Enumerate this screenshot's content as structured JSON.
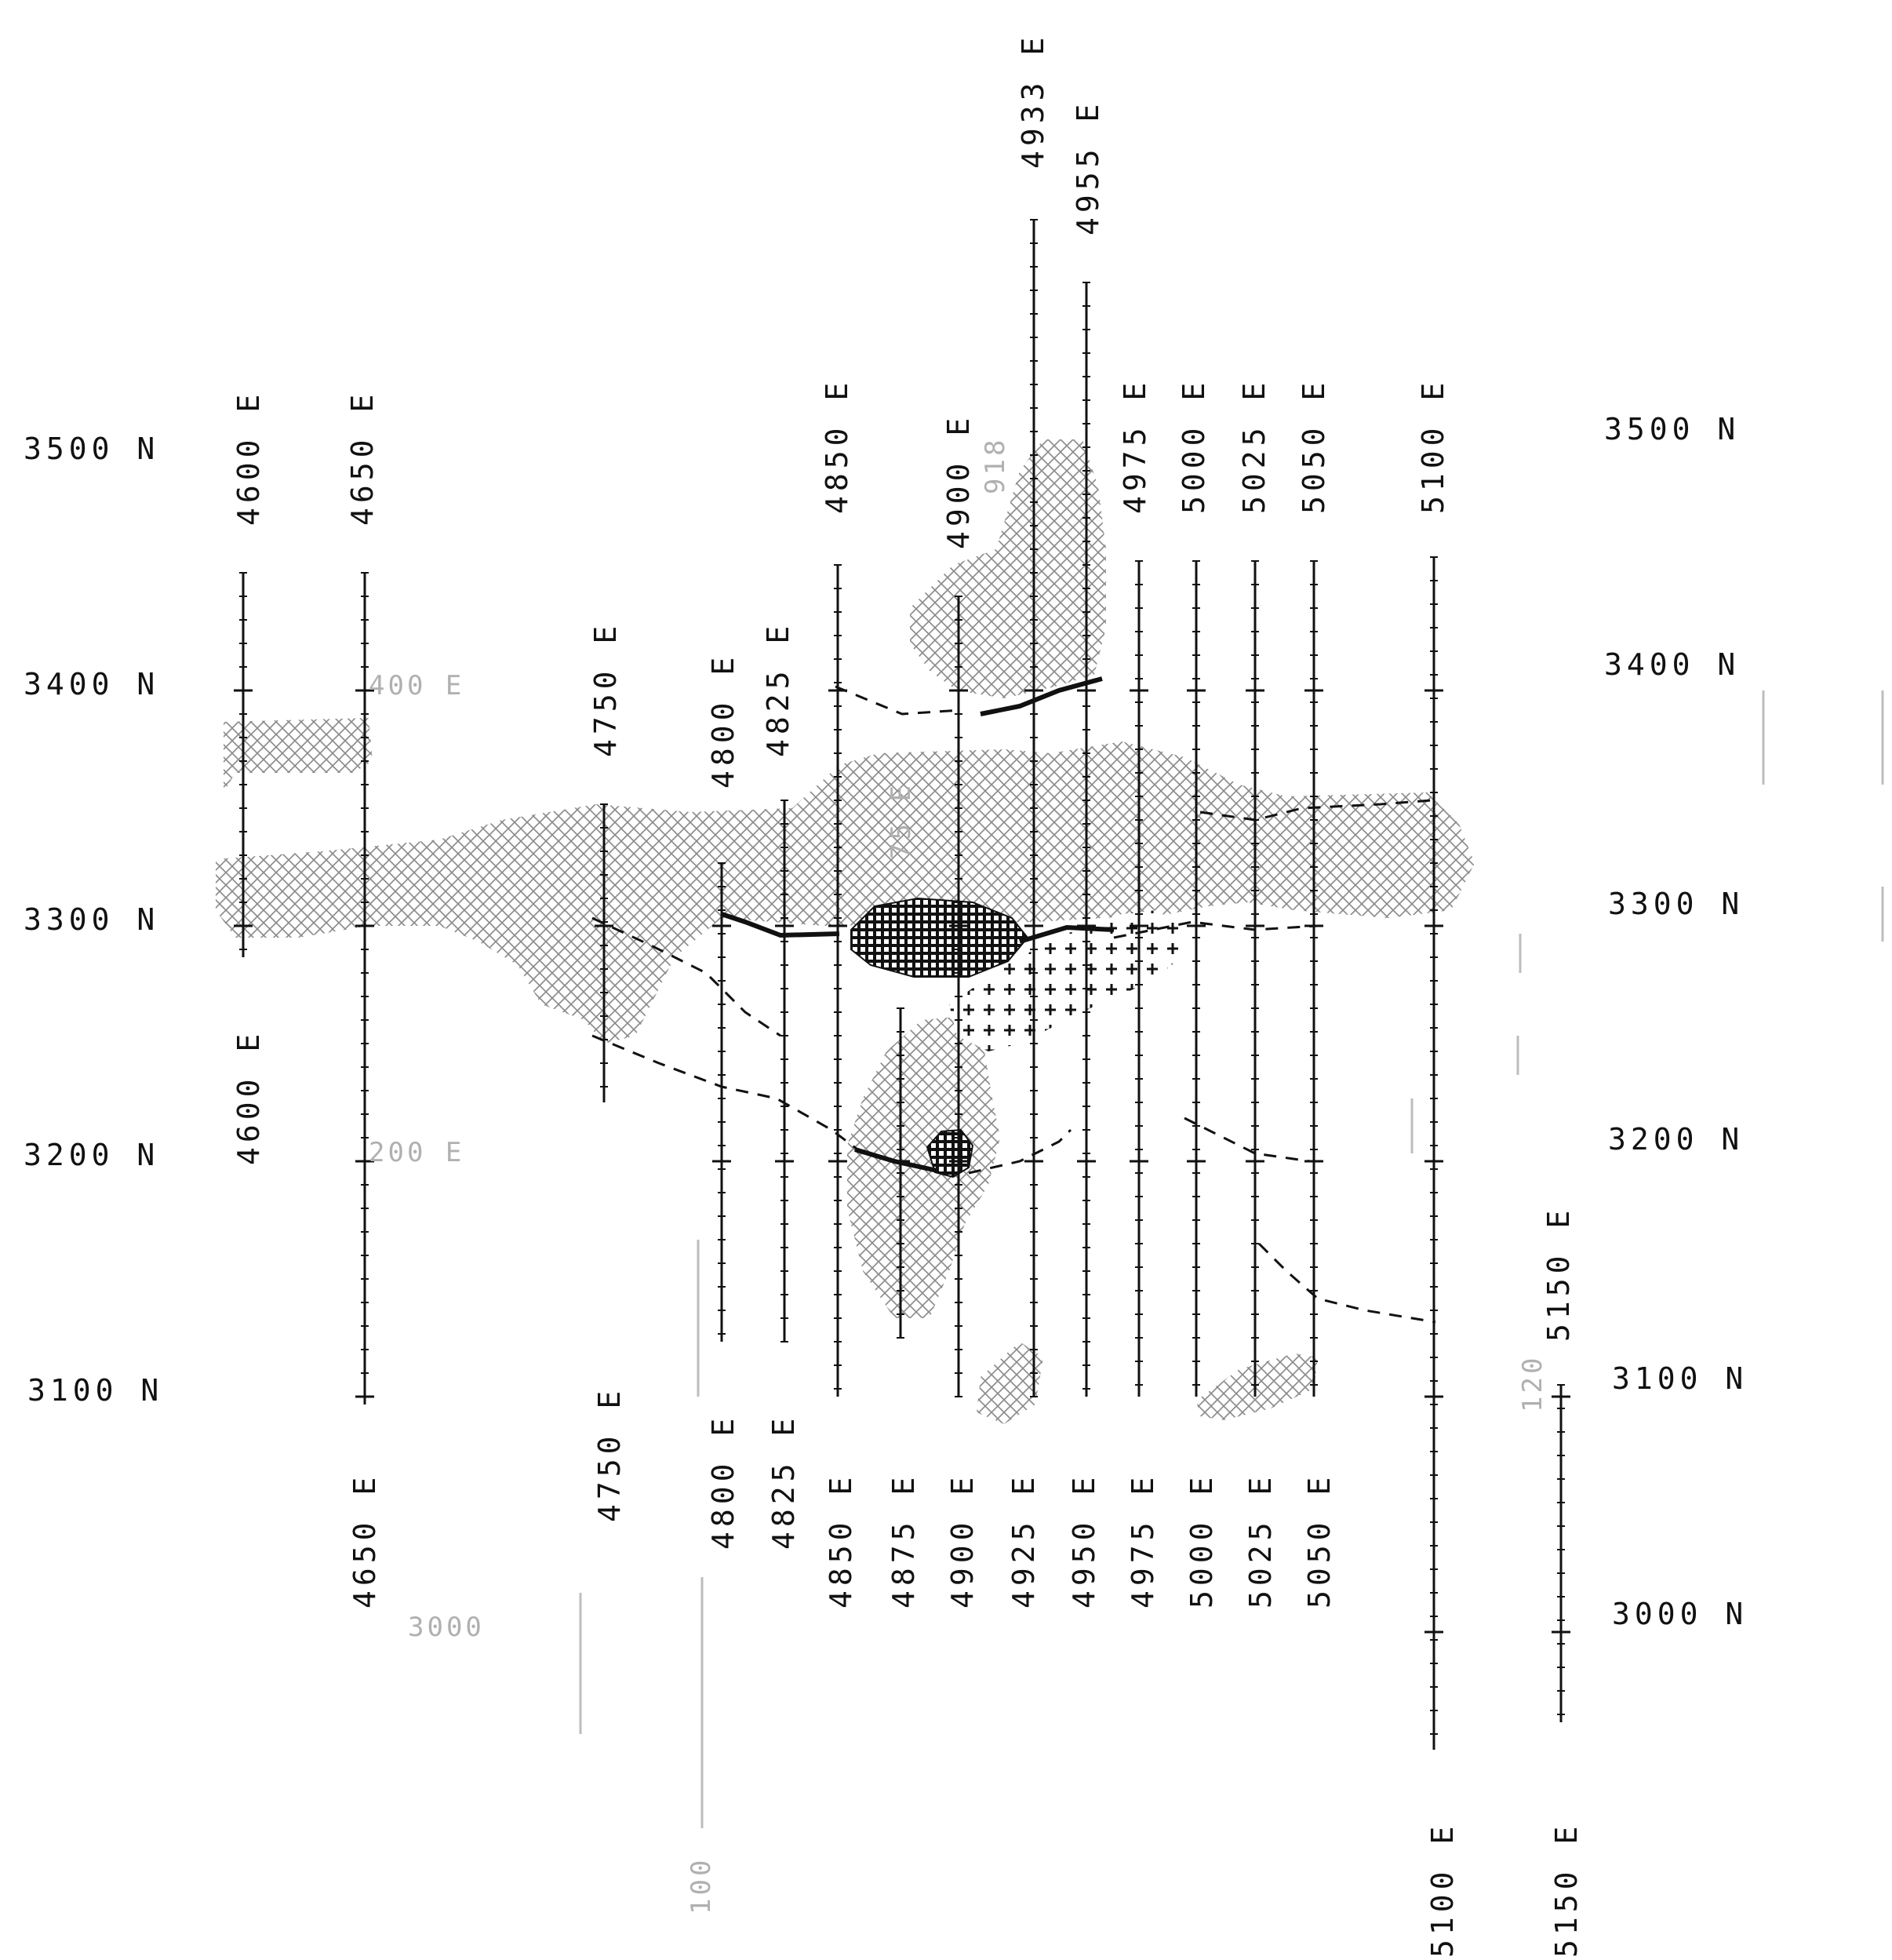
{
  "north_labels_left": [
    {
      "id": "n3500",
      "text": "3500 N"
    },
    {
      "id": "n3400",
      "text": "3400 N"
    },
    {
      "id": "n3300",
      "text": "3300 N"
    },
    {
      "id": "n3200",
      "text": "3200 N"
    },
    {
      "id": "n3100",
      "text": "3100 N"
    }
  ],
  "north_labels_right": [
    {
      "id": "rn3500",
      "text": "3500 N"
    },
    {
      "id": "rn3400",
      "text": "3400 N"
    },
    {
      "id": "rn3300",
      "text": "3300 N"
    },
    {
      "id": "rn3200",
      "text": "3200 N"
    },
    {
      "id": "rn3100",
      "text": "3100 N"
    },
    {
      "id": "rn3000",
      "text": "3000 N"
    }
  ],
  "top_line_labels": [
    {
      "id": "t4600",
      "text": "4600 E"
    },
    {
      "id": "t4650",
      "text": "4650 E"
    },
    {
      "id": "t4750",
      "text": "4750 E"
    },
    {
      "id": "t4800",
      "text": "4800 E"
    },
    {
      "id": "t4825",
      "text": "4825 E"
    },
    {
      "id": "t4850",
      "text": "4850 E"
    },
    {
      "id": "t4900",
      "text": "4900 E"
    },
    {
      "id": "t4933",
      "text": "4933 E"
    },
    {
      "id": "t4955",
      "text": "4955 E"
    },
    {
      "id": "t4975",
      "text": "4975 E"
    },
    {
      "id": "t5000",
      "text": "5000 E"
    },
    {
      "id": "t5025",
      "text": "5025 E"
    },
    {
      "id": "t5050",
      "text": "5050 E"
    },
    {
      "id": "t5100",
      "text": "5100 E"
    },
    {
      "id": "t5150",
      "text": "5150 E"
    }
  ],
  "bottom_line_labels": [
    {
      "id": "b4600",
      "text": "4600 E"
    },
    {
      "id": "b4650",
      "text": "4650 E"
    },
    {
      "id": "b4750",
      "text": "4750 E"
    },
    {
      "id": "b4800",
      "text": "4800 E"
    },
    {
      "id": "b4825",
      "text": "4825 E"
    },
    {
      "id": "b4850",
      "text": "4850 E"
    },
    {
      "id": "b4875",
      "text": "4875 E"
    },
    {
      "id": "b4900",
      "text": "4900 E"
    },
    {
      "id": "b4925",
      "text": "4925 E"
    },
    {
      "id": "b4950",
      "text": "4950 E"
    },
    {
      "id": "b4975",
      "text": "4975 E"
    },
    {
      "id": "b5000",
      "text": "5000 E"
    },
    {
      "id": "b5025",
      "text": "5025 E"
    },
    {
      "id": "b5050",
      "text": "5050 E"
    },
    {
      "id": "b5100",
      "text": "5100 E"
    },
    {
      "id": "b5150",
      "text": "5150 E"
    }
  ],
  "faint_labels": [
    {
      "id": "f400",
      "text": "400 E"
    },
    {
      "id": "f200",
      "text": "200 E"
    },
    {
      "id": "f3000",
      "text": "3000"
    },
    {
      "id": "f120",
      "text": "120"
    },
    {
      "id": "f75",
      "text": "75 E"
    },
    {
      "id": "f918",
      "text": "918"
    },
    {
      "id": "f100",
      "text": "100"
    }
  ],
  "colors": {
    "ink": "#111111",
    "faint": "#b0b0b0",
    "pattern": "#8a8a8a"
  }
}
